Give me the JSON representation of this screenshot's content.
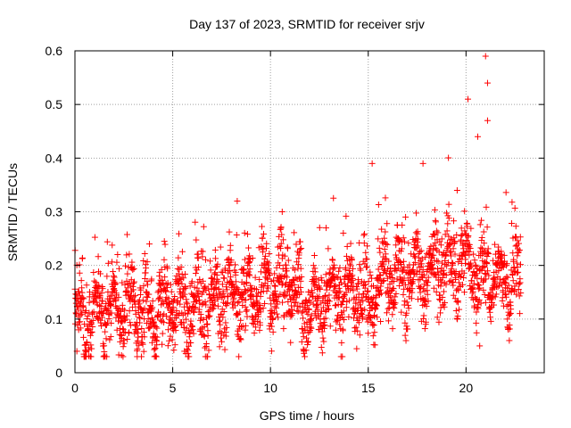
{
  "chart_data": {
    "type": "scatter",
    "title": "Day 137 of 2023, SRMTID for receiver srjv",
    "xlabel": "GPS time / hours",
    "ylabel": "SRMTID / TECUs",
    "xlim": [
      0,
      24
    ],
    "ylim": [
      0,
      0.6
    ],
    "xticks": [
      0,
      5,
      10,
      15,
      20
    ],
    "xtick_labels": [
      "0",
      "5",
      "10",
      "15",
      "20"
    ],
    "yticks": [
      0,
      0.1,
      0.2,
      0.3,
      0.4,
      0.5,
      0.6
    ],
    "ytick_labels": [
      "0",
      "0.1",
      "0.2",
      "0.3",
      "0.4",
      "0.5",
      "0.6"
    ],
    "grid": true,
    "marker": "+",
    "color": "#ff0000",
    "series": [
      {
        "name": "srjv",
        "generated_fit": {
          "x_range": [
            0,
            22.8
          ],
          "points": 2300,
          "baseline": [
            [
              0,
              0.1
            ],
            [
              1,
              0.11
            ],
            [
              2,
              0.12
            ],
            [
              3,
              0.12
            ],
            [
              4,
              0.11
            ],
            [
              5,
              0.13
            ],
            [
              6,
              0.12
            ],
            [
              7,
              0.13
            ],
            [
              8,
              0.15
            ],
            [
              9,
              0.15
            ],
            [
              10,
              0.16
            ],
            [
              11,
              0.17
            ],
            [
              12,
              0.12
            ],
            [
              13,
              0.14
            ],
            [
              14,
              0.15
            ],
            [
              15,
              0.14
            ],
            [
              16,
              0.18
            ],
            [
              17,
              0.18
            ],
            [
              18,
              0.19
            ],
            [
              19,
              0.2
            ],
            [
              20,
              0.2
            ],
            [
              21,
              0.18
            ],
            [
              22,
              0.17
            ],
            [
              22.8,
              0.16
            ]
          ],
          "spread": 0.04,
          "notable_points": [
            [
              8.3,
              0.32
            ],
            [
              10.6,
              0.3
            ],
            [
              15.2,
              0.39
            ],
            [
              17.8,
              0.39
            ],
            [
              20.1,
              0.51
            ],
            [
              20.6,
              0.44
            ],
            [
              21.0,
              0.59
            ],
            [
              21.1,
              0.54
            ],
            [
              21.1,
              0.47
            ],
            [
              0.1,
              0.04
            ],
            [
              5.6,
              0.04
            ],
            [
              20.7,
              0.05
            ]
          ]
        }
      }
    ]
  }
}
